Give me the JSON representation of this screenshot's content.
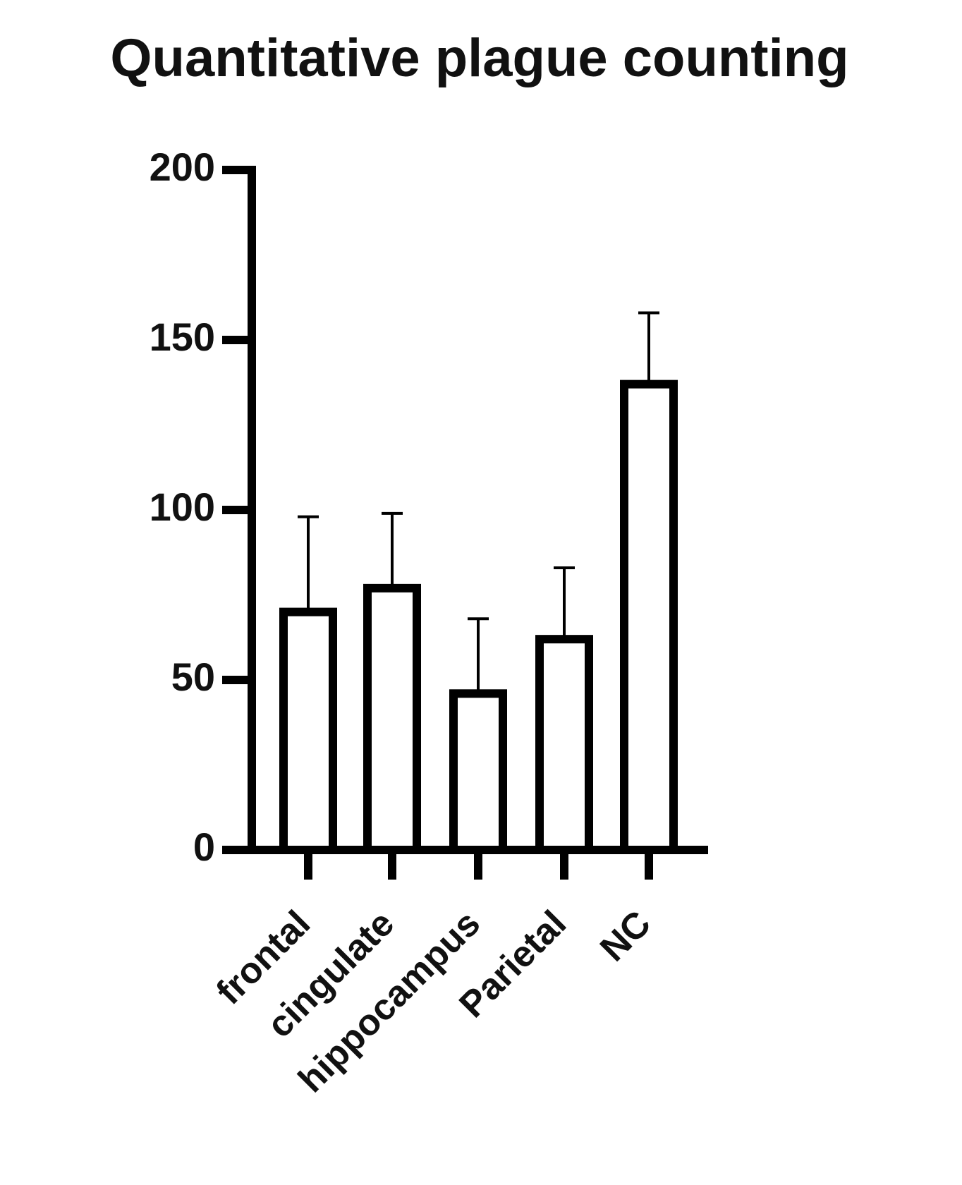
{
  "chart_data": {
    "type": "bar",
    "title": "Quantitative plague counting",
    "categories": [
      "frontal",
      "cingulate",
      "hippocampus",
      "Parietal",
      "NC"
    ],
    "values": [
      70,
      77,
      46,
      62,
      137
    ],
    "errors": [
      28,
      22,
      22,
      21,
      21
    ],
    "color": "#ffffff",
    "ylim": [
      0,
      200
    ],
    "yticks": [
      0,
      50,
      100,
      150,
      200
    ],
    "grid": false
  }
}
